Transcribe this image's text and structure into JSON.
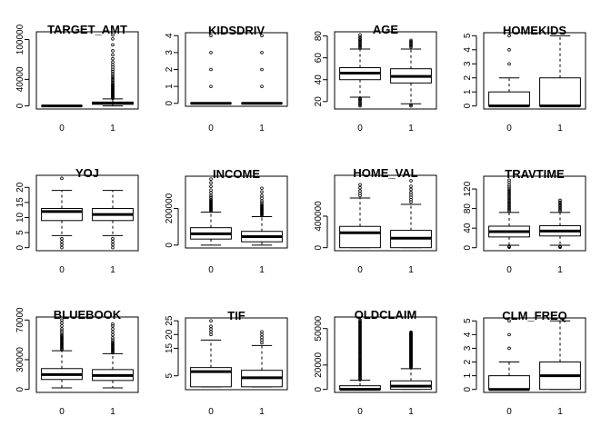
{
  "chart_data": [
    {
      "type": "boxplot",
      "title": "TARGET_AMT",
      "categories": [
        "0",
        "1"
      ],
      "ylim": [
        0,
        107000
      ],
      "yticks": [
        0,
        40000,
        100000
      ],
      "boxes": [
        {
          "min": 0,
          "q1": 0,
          "median": 0,
          "q3": 0,
          "max": 0,
          "outliers": []
        },
        {
          "min": 30,
          "q1": 2500,
          "median": 4100,
          "q3": 5800,
          "max": 10500,
          "outliers": [
            11500,
            12500,
            13500,
            14500,
            15500,
            16500,
            17500,
            18500,
            19500,
            20500,
            21500,
            22500,
            23500,
            24500,
            25500,
            26500,
            27500,
            28500,
            29500,
            30500,
            31500,
            33000,
            35000,
            37000,
            39000,
            41000,
            43500,
            46000,
            49000,
            52000,
            55000,
            58500,
            62000,
            66000,
            71000,
            77000,
            83000,
            92000,
            101000,
            107000
          ]
        }
      ]
    },
    {
      "type": "boxplot",
      "title": "KIDSDRIV",
      "categories": [
        "0",
        "1"
      ],
      "ylim": [
        0,
        4
      ],
      "yticks": [
        0,
        1,
        2,
        3,
        4
      ],
      "boxes": [
        {
          "min": 0,
          "q1": 0,
          "median": 0,
          "q3": 0,
          "max": 0,
          "outliers": [
            1,
            2,
            3,
            4
          ]
        },
        {
          "min": 0,
          "q1": 0,
          "median": 0,
          "q3": 0,
          "max": 0,
          "outliers": [
            1,
            2,
            3,
            4
          ]
        }
      ]
    },
    {
      "type": "boxplot",
      "title": "AGE",
      "categories": [
        "0",
        "1"
      ],
      "ylim": [
        16,
        81
      ],
      "yticks": [
        20,
        40,
        60,
        80
      ],
      "boxes": [
        {
          "min": 24,
          "q1": 40,
          "median": 46,
          "q3": 51,
          "max": 68,
          "outliers": [
            16,
            17,
            18,
            19,
            20,
            21,
            22,
            22.5,
            23,
            69,
            70,
            71,
            72,
            73,
            74,
            75,
            76,
            77,
            78,
            79,
            81
          ]
        },
        {
          "min": 18,
          "q1": 37,
          "median": 43,
          "q3": 50,
          "max": 68,
          "outliers": [
            16,
            17,
            70,
            71,
            72,
            73,
            74,
            75,
            76
          ]
        }
      ]
    },
    {
      "type": "boxplot",
      "title": "HOMEKIDS",
      "categories": [
        "0",
        "1"
      ],
      "ylim": [
        0,
        5
      ],
      "yticks": [
        0,
        1,
        2,
        3,
        4,
        5
      ],
      "boxes": [
        {
          "min": 0,
          "q1": 0,
          "median": 0,
          "q3": 1,
          "max": 2,
          "outliers": [
            3,
            4,
            5
          ]
        },
        {
          "min": 0,
          "q1": 0,
          "median": 0,
          "q3": 2,
          "max": 5,
          "outliers": []
        }
      ]
    },
    {
      "type": "boxplot",
      "title": "YOJ",
      "categories": [
        "0",
        "1"
      ],
      "ylim": [
        0,
        23
      ],
      "yticks": [
        0,
        5,
        10,
        15,
        20
      ],
      "boxes": [
        {
          "min": 4,
          "q1": 9,
          "median": 12,
          "q3": 13,
          "max": 19,
          "outliers": [
            0,
            1,
            2,
            3,
            23
          ]
        },
        {
          "min": 4,
          "q1": 9,
          "median": 11,
          "q3": 13,
          "max": 19,
          "outliers": [
            0,
            1,
            2,
            3
          ]
        }
      ]
    },
    {
      "type": "boxplot",
      "title": "INCOME",
      "categories": [
        "0",
        "1"
      ],
      "ylim": [
        0,
        360000
      ],
      "yticks": [
        0,
        200000
      ],
      "boxes": [
        {
          "min": 0,
          "q1": 33000,
          "median": 62000,
          "q3": 95000,
          "max": 180000,
          "outliers": [
            185000,
            190000,
            195000,
            200000,
            205000,
            210000,
            215000,
            220000,
            225000,
            230000,
            235000,
            240000,
            245000,
            250000,
            260000,
            270000,
            285000,
            300000,
            320000,
            340000,
            360000
          ]
        },
        {
          "min": 0,
          "q1": 18000,
          "median": 46000,
          "q3": 75000,
          "max": 155000,
          "outliers": [
            160000,
            165000,
            170000,
            175000,
            180000,
            185000,
            190000,
            195000,
            200000,
            205000,
            210000,
            215000,
            220000,
            230000,
            240000,
            255000,
            270000,
            290000,
            310000
          ]
        }
      ]
    },
    {
      "type": "boxplot",
      "title": "HOME_VAL",
      "categories": [
        "0",
        "1"
      ],
      "ylim": [
        0,
        880000
      ],
      "yticks": [
        0,
        400000
      ],
      "boxes": [
        {
          "min": 0,
          "q1": 0,
          "median": 190000,
          "q3": 270000,
          "max": 630000,
          "outliers": [
            660000,
            690000,
            720000,
            760000,
            800000
          ]
        },
        {
          "min": 0,
          "q1": 0,
          "median": 120000,
          "q3": 220000,
          "max": 550000,
          "outliers": [
            580000,
            610000,
            640000,
            670000,
            700000,
            740000,
            780000,
            850000
          ]
        }
      ]
    },
    {
      "type": "boxplot",
      "title": "TRAVTIME",
      "categories": [
        "0",
        "1"
      ],
      "ylim": [
        0,
        140
      ],
      "yticks": [
        0,
        40,
        80,
        120
      ],
      "boxes": [
        {
          "min": 5,
          "q1": 22,
          "median": 33,
          "q3": 44,
          "max": 72,
          "outliers": [
            1,
            2,
            3,
            75,
            78,
            81,
            84,
            87,
            90,
            93,
            96,
            99,
            102,
            105,
            108,
            111,
            114,
            117,
            120,
            124,
            128,
            133,
            138
          ]
        },
        {
          "min": 5,
          "q1": 24,
          "median": 34,
          "q3": 45,
          "max": 72,
          "outliers": [
            1,
            2,
            3,
            75,
            78,
            81,
            84,
            87,
            90,
            93,
            97
          ]
        }
      ]
    },
    {
      "type": "boxplot",
      "title": "BLUEBOOK",
      "categories": [
        "0",
        "1"
      ],
      "ylim": [
        0,
        70000
      ],
      "yticks": [
        0,
        30000,
        70000
      ],
      "boxes": [
        {
          "min": 1500,
          "q1": 10000,
          "median": 15000,
          "q3": 21000,
          "max": 39000,
          "outliers": [
            40000,
            41000,
            42000,
            43000,
            44000,
            45000,
            46000,
            47000,
            48000,
            49000,
            50000,
            51000,
            52000,
            53000,
            54000,
            55000,
            57000,
            59000,
            61000,
            64000,
            67000,
            70000
          ]
        },
        {
          "min": 1500,
          "q1": 9000,
          "median": 14000,
          "q3": 20000,
          "max": 36000,
          "outliers": [
            37000,
            38000,
            39000,
            40000,
            41000,
            42000,
            43000,
            44000,
            45000,
            46000,
            47000,
            48000,
            50000,
            52000,
            55000,
            58000,
            61000,
            64000,
            66000
          ]
        }
      ]
    },
    {
      "type": "boxplot",
      "title": "TIF",
      "categories": [
        "0",
        "1"
      ],
      "ylim": [
        1,
        25
      ],
      "yticks": [
        5,
        15,
        20,
        25
      ],
      "boxes": [
        {
          "min": 1,
          "q1": 1,
          "median": 6.5,
          "q3": 8,
          "max": 18,
          "outliers": [
            20,
            21,
            22,
            23,
            25
          ]
        },
        {
          "min": 1,
          "q1": 1,
          "median": 4.3,
          "q3": 7,
          "max": 16,
          "outliers": [
            17,
            18,
            19,
            20,
            21
          ]
        }
      ]
    },
    {
      "type": "boxplot",
      "title": "OLDCLAIM",
      "categories": [
        "0",
        "1"
      ],
      "ylim": [
        0,
        57000
      ],
      "yticks": [
        0,
        20000,
        50000
      ],
      "boxes": [
        {
          "min": 0,
          "q1": 0,
          "median": 0,
          "q3": 3000,
          "max": 7500,
          "outliers": "dense:8000-57000"
        },
        {
          "min": 0,
          "q1": 0,
          "median": 2700,
          "q3": 7000,
          "max": 17000,
          "outliers": "dense:18000-47000"
        }
      ]
    },
    {
      "type": "boxplot",
      "title": "CLM_FREQ",
      "categories": [
        "0",
        "1"
      ],
      "ylim": [
        0,
        5
      ],
      "yticks": [
        0,
        1,
        2,
        3,
        4,
        5
      ],
      "boxes": [
        {
          "min": 0,
          "q1": 0,
          "median": 0,
          "q3": 1,
          "max": 2,
          "outliers": [
            3,
            4,
            5
          ]
        },
        {
          "min": 0,
          "q1": 0,
          "median": 1,
          "q3": 2,
          "max": 5,
          "outliers": []
        }
      ]
    }
  ]
}
